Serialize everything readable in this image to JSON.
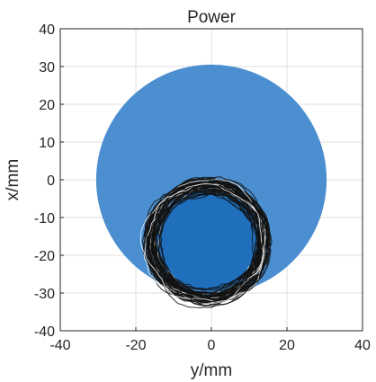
{
  "chart_data": {
    "type": "scatter",
    "title": "Power",
    "xlabel": "y/mm",
    "ylabel": "x/mm",
    "xlim": [
      -40,
      40
    ],
    "ylim": [
      -40,
      40
    ],
    "xticks": [
      -40,
      -20,
      0,
      20,
      40
    ],
    "yticks": [
      -40,
      -30,
      -20,
      -10,
      0,
      10,
      20,
      30,
      40
    ],
    "grid": true,
    "background_disk": {
      "center": [
        0,
        0
      ],
      "radius": 30.5,
      "color": "#4b8fd0"
    },
    "inner_disk": {
      "center": [
        -1,
        -16
      ],
      "radius": 13.5,
      "color": "#1f6fbd"
    },
    "trajectory": {
      "center": [
        -1,
        -16.5
      ],
      "radius_min": 13,
      "radius_max": 16.5,
      "loops": 60,
      "color": "#111111",
      "highlight_color": "#ffffff"
    }
  },
  "colors": {
    "text": "#262626",
    "grid": "#dfdfdf"
  }
}
